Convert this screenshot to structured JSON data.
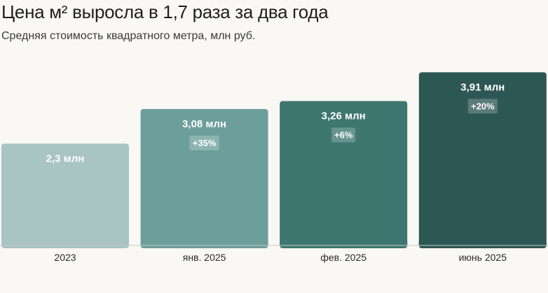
{
  "title": "Цена м² выросла в 1,7 раза за два года",
  "subtitle": "Средняя стоимость квадратного метра, млн руб.",
  "chart_data": {
    "type": "bar",
    "title": "Цена м² выросла в 1,7 раза за два года",
    "subtitle": "Средняя стоимость квадратного метра, млн руб.",
    "xlabel": "",
    "ylabel": "",
    "categories": [
      "2023",
      "янв. 2025",
      "фев. 2025",
      "июнь 2025"
    ],
    "values": [
      2.3,
      3.08,
      3.26,
      3.91
    ],
    "value_labels": [
      "2,3 млн",
      "3,08 млн",
      "3,26 млн",
      "3,91 млн"
    ],
    "change_labels": [
      "",
      "+35%",
      "+6%",
      "+20%"
    ],
    "bar_colors": [
      "#a8c4c3",
      "#6c9f9b",
      "#3e7770",
      "#2d5753"
    ],
    "ylim": [
      0,
      4.2
    ],
    "grid": false,
    "legend": "none"
  }
}
